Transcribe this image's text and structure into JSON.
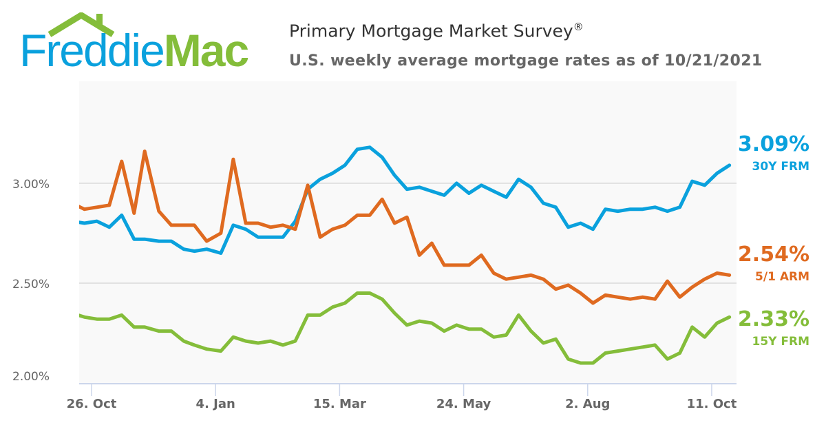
{
  "header": {
    "logo": "Freddie Mac",
    "logo_part1": "Freddie",
    "logo_part2": "Mac",
    "title": "Primary Mortgage Market Survey",
    "title_mark": "®",
    "subtitle": "U.S. weekly average mortgage rates as of 10/21/2021"
  },
  "chart_data": {
    "type": "line",
    "title": "Primary Mortgage Market Survey®",
    "subtitle": "U.S. weekly average mortgage rates as of 10/21/2021",
    "xlim": [
      "2020-10-19",
      "2021-10-25"
    ],
    "ylim": [
      2.0,
      3.5
    ],
    "grid": true,
    "legend": "right",
    "y_ticks": [
      {
        "value": 2.0,
        "label": "2.00%"
      },
      {
        "value": 2.5,
        "label": "2.50%"
      },
      {
        "value": 3.0,
        "label": "3.00%"
      }
    ],
    "x_ticks": [
      {
        "date": "2020-10-26",
        "label": "26. Oct"
      },
      {
        "date": "2021-01-04",
        "label": "4. Jan"
      },
      {
        "date": "2021-03-15",
        "label": "15. Mar"
      },
      {
        "date": "2021-05-24",
        "label": "24. May"
      },
      {
        "date": "2021-08-02",
        "label": "2. Aug"
      },
      {
        "date": "2021-10-11",
        "label": "11. Oct"
      }
    ],
    "x": [
      "2020-10-15",
      "2020-10-22",
      "2020-10-29",
      "2020-11-05",
      "2020-11-12",
      "2020-11-19",
      "2020-11-25",
      "2020-12-03",
      "2020-12-10",
      "2020-12-17",
      "2020-12-23",
      "2020-12-30",
      "2021-01-07",
      "2021-01-14",
      "2021-01-21",
      "2021-01-28",
      "2021-02-04",
      "2021-02-11",
      "2021-02-18",
      "2021-02-25",
      "2021-03-04",
      "2021-03-11",
      "2021-03-18",
      "2021-03-25",
      "2021-04-01",
      "2021-04-08",
      "2021-04-15",
      "2021-04-22",
      "2021-04-29",
      "2021-05-06",
      "2021-05-13",
      "2021-05-20",
      "2021-05-27",
      "2021-06-03",
      "2021-06-10",
      "2021-06-17",
      "2021-06-24",
      "2021-07-01",
      "2021-07-08",
      "2021-07-15",
      "2021-07-22",
      "2021-07-29",
      "2021-08-05",
      "2021-08-12",
      "2021-08-19",
      "2021-08-26",
      "2021-09-02",
      "2021-09-09",
      "2021-09-16",
      "2021-09-23",
      "2021-09-30",
      "2021-10-07",
      "2021-10-14",
      "2021-10-21"
    ],
    "series": [
      {
        "name": "30Y FRM",
        "color": "#0aa1dd",
        "last_label": "3.09%",
        "values": [
          2.81,
          2.8,
          2.81,
          2.78,
          2.84,
          2.72,
          2.72,
          2.71,
          2.71,
          2.67,
          2.66,
          2.67,
          2.65,
          2.79,
          2.77,
          2.73,
          2.73,
          2.73,
          2.81,
          2.97,
          3.02,
          3.05,
          3.09,
          3.17,
          3.18,
          3.13,
          3.04,
          2.97,
          2.98,
          2.96,
          2.94,
          3.0,
          2.95,
          2.99,
          2.96,
          2.93,
          3.02,
          2.98,
          2.9,
          2.88,
          2.78,
          2.8,
          2.77,
          2.87,
          2.86,
          2.87,
          2.87,
          2.88,
          2.86,
          2.88,
          3.01,
          2.99,
          3.05,
          3.09
        ]
      },
      {
        "name": "5/1 ARM",
        "color": "#df6a20",
        "last_label": "2.54%",
        "values": [
          2.9,
          2.87,
          2.88,
          2.89,
          3.11,
          2.85,
          3.16,
          2.86,
          2.79,
          2.79,
          2.79,
          2.71,
          2.75,
          3.12,
          2.8,
          2.8,
          2.78,
          2.79,
          2.77,
          2.99,
          2.73,
          2.77,
          2.79,
          2.84,
          2.84,
          2.92,
          2.8,
          2.83,
          2.64,
          2.7,
          2.59,
          2.59,
          2.59,
          2.64,
          2.55,
          2.52,
          2.53,
          2.54,
          2.52,
          2.47,
          2.49,
          2.45,
          2.4,
          2.44,
          2.43,
          2.42,
          2.43,
          2.42,
          2.51,
          2.43,
          2.48,
          2.52,
          2.55,
          2.54
        ]
      },
      {
        "name": "15Y FRM",
        "color": "#84bd3a",
        "last_label": "2.33%",
        "values": [
          2.35,
          2.33,
          2.32,
          2.32,
          2.34,
          2.28,
          2.28,
          2.26,
          2.26,
          2.21,
          2.19,
          2.17,
          2.16,
          2.23,
          2.21,
          2.2,
          2.21,
          2.19,
          2.21,
          2.34,
          2.34,
          2.38,
          2.4,
          2.45,
          2.45,
          2.42,
          2.35,
          2.29,
          2.31,
          2.3,
          2.26,
          2.29,
          2.27,
          2.27,
          2.23,
          2.24,
          2.34,
          2.26,
          2.2,
          2.22,
          2.12,
          2.1,
          2.1,
          2.15,
          2.16,
          2.17,
          2.18,
          2.19,
          2.12,
          2.15,
          2.28,
          2.23,
          2.3,
          2.33
        ]
      }
    ]
  }
}
